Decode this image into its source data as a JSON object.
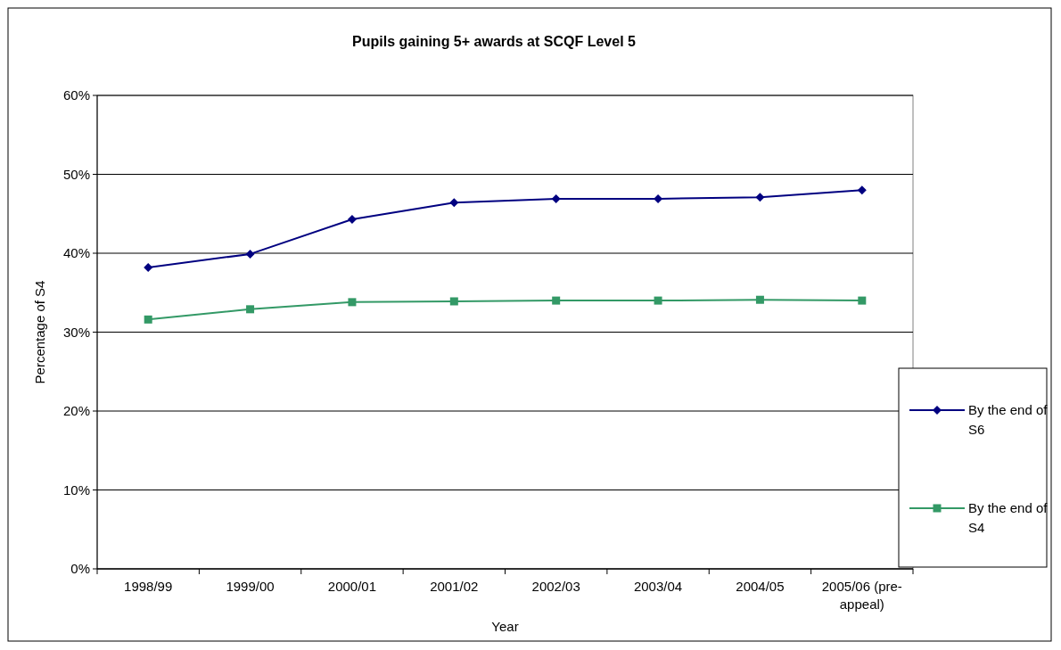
{
  "chart_data": {
    "type": "line",
    "title": "Pupils gaining 5+ awards at SCQF Level 5",
    "xlabel": "Year",
    "ylabel": "Percentage of S4",
    "categories": [
      "1998/99",
      "1999/00",
      "2000/01",
      "2001/02",
      "2002/03",
      "2003/04",
      "2004/05",
      "2005/06 (pre-appeal)"
    ],
    "series": [
      {
        "name": "By the end of S6",
        "color": "#000080",
        "marker": "diamond",
        "values": [
          38.2,
          39.9,
          44.3,
          46.4,
          46.9,
          46.9,
          47.1,
          48.0
        ]
      },
      {
        "name": "By the end of S4",
        "color": "#339966",
        "marker": "square",
        "values": [
          31.6,
          32.9,
          33.8,
          33.9,
          34.0,
          34.0,
          34.1,
          34.0
        ]
      }
    ],
    "ylim": [
      0,
      60
    ],
    "yticks": [
      {
        "value": 0,
        "label": "0%"
      },
      {
        "value": 10,
        "label": "10%"
      },
      {
        "value": 20,
        "label": "20%"
      },
      {
        "value": 30,
        "label": "30%"
      },
      {
        "value": 40,
        "label": "40%"
      },
      {
        "value": 50,
        "label": "50%"
      },
      {
        "value": 60,
        "label": "60%"
      }
    ],
    "grid": "y",
    "legend": "right",
    "line_style": "solid"
  }
}
